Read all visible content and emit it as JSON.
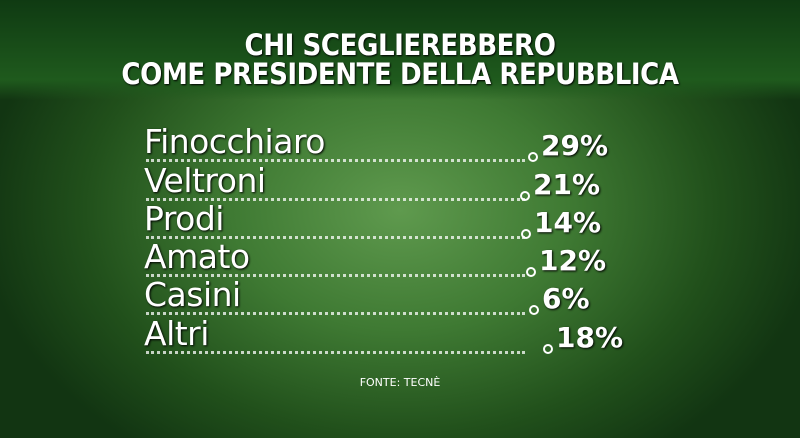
{
  "header": {
    "title_lines": [
      "CHI SCEGLIEREBBERO",
      "COME PRESIDENTE DELLA REPUBBLICA"
    ]
  },
  "table": {
    "rows": [
      [
        "Finocchiaro",
        "29%"
      ],
      [
        "Veltroni",
        "21%"
      ],
      [
        "Prodi",
        "14%"
      ],
      [
        "Amato",
        "12%"
      ],
      [
        "Casini",
        "6%"
      ],
      [
        "Altri",
        "18%"
      ]
    ]
  },
  "footer": {
    "source": "FONTE: TECNÈ"
  }
}
